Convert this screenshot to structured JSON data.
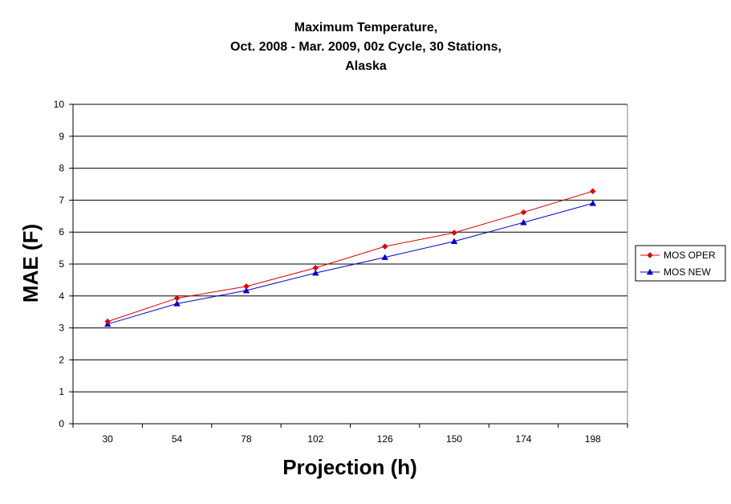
{
  "chart_data": {
    "type": "line",
    "title": [
      "Maximum Temperature,",
      "Oct. 2008 - Mar. 2009, 00z Cycle, 30 Stations,",
      "Alaska"
    ],
    "xlabel": "Projection (h)",
    "ylabel": "MAE (F)",
    "categories": [
      "30",
      "54",
      "78",
      "102",
      "126",
      "150",
      "174",
      "198"
    ],
    "ylim": [
      0,
      10
    ],
    "yticks": [
      "0",
      "1",
      "2",
      "3",
      "4",
      "5",
      "6",
      "7",
      "8",
      "9",
      "10"
    ],
    "grid": "horizontal",
    "legend_position": "right",
    "series": [
      {
        "name": "MOS OPER",
        "color": "#dd0000",
        "marker": "diamond",
        "values": [
          3.2,
          3.93,
          4.3,
          4.88,
          5.55,
          5.98,
          6.62,
          7.28
        ]
      },
      {
        "name": "MOS NEW",
        "color": "#0000cc",
        "marker": "triangle",
        "values": [
          3.12,
          3.76,
          4.17,
          4.72,
          5.21,
          5.71,
          6.3,
          6.9
        ]
      }
    ]
  }
}
